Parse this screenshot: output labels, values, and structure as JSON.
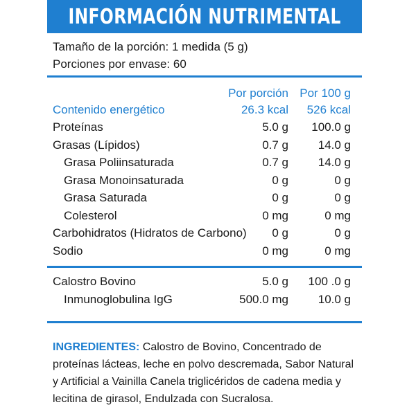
{
  "header": {
    "title": "INFORMACIÓN NUTRIMENTAL"
  },
  "serving": {
    "size": "Tamaño de la porción: 1 medida (5 g)",
    "per_container": "Porciones por envase: 60"
  },
  "columns": {
    "per_serving": "Por porción",
    "per_100g": "Por 100 g"
  },
  "energy": {
    "label": "Contenido energético",
    "per_serving": "26.3 kcal",
    "per_100g": "526 kcal"
  },
  "nutrients": [
    {
      "label": "Proteínas",
      "per_serving": "5.0 g",
      "per_100g": "100.0 g",
      "indent": false
    },
    {
      "label": "Grasas (Lípidos)",
      "per_serving": "0.7 g",
      "per_100g": "14.0 g",
      "indent": false
    },
    {
      "label": "Grasa Poliinsaturada",
      "per_serving": "0.7 g",
      "per_100g": "14.0 g",
      "indent": true
    },
    {
      "label": "Grasa Monoinsaturada",
      "per_serving": "0 g",
      "per_100g": "0 g",
      "indent": true
    },
    {
      "label": "Grasa Saturada",
      "per_serving": "0 g",
      "per_100g": "0 g",
      "indent": true
    },
    {
      "label": "Colesterol",
      "per_serving": "0 mg",
      "per_100g": "0 mg",
      "indent": true
    },
    {
      "label": "Carbohidratos (Hidratos de Carbono)",
      "per_serving": "0 g",
      "per_100g": "0 g",
      "indent": false
    },
    {
      "label": "Sodio",
      "per_serving": "0 mg",
      "per_100g": "0 mg",
      "indent": false
    }
  ],
  "extras": [
    {
      "label": "Calostro Bovino",
      "per_serving": "5.0 g",
      "per_100g": "100 .0 g",
      "indent": false
    },
    {
      "label": "Inmunoglobulina IgG",
      "per_serving": "500.0 mg",
      "per_100g": "10.0 g",
      "indent": true
    }
  ],
  "ingredients": {
    "label": "INGREDIENTES:",
    "text": " Calostro de Bovino, Concentrado de proteínas lácteas, leche en polvo descremada, Sabor Natural y Artificial a Vainilla Canela triglicéridos de cadena media y lecitina de girasol, Endulzada con Sucralosa."
  },
  "colors": {
    "accent": "#1f7fd0",
    "text": "#1a1a1a"
  }
}
